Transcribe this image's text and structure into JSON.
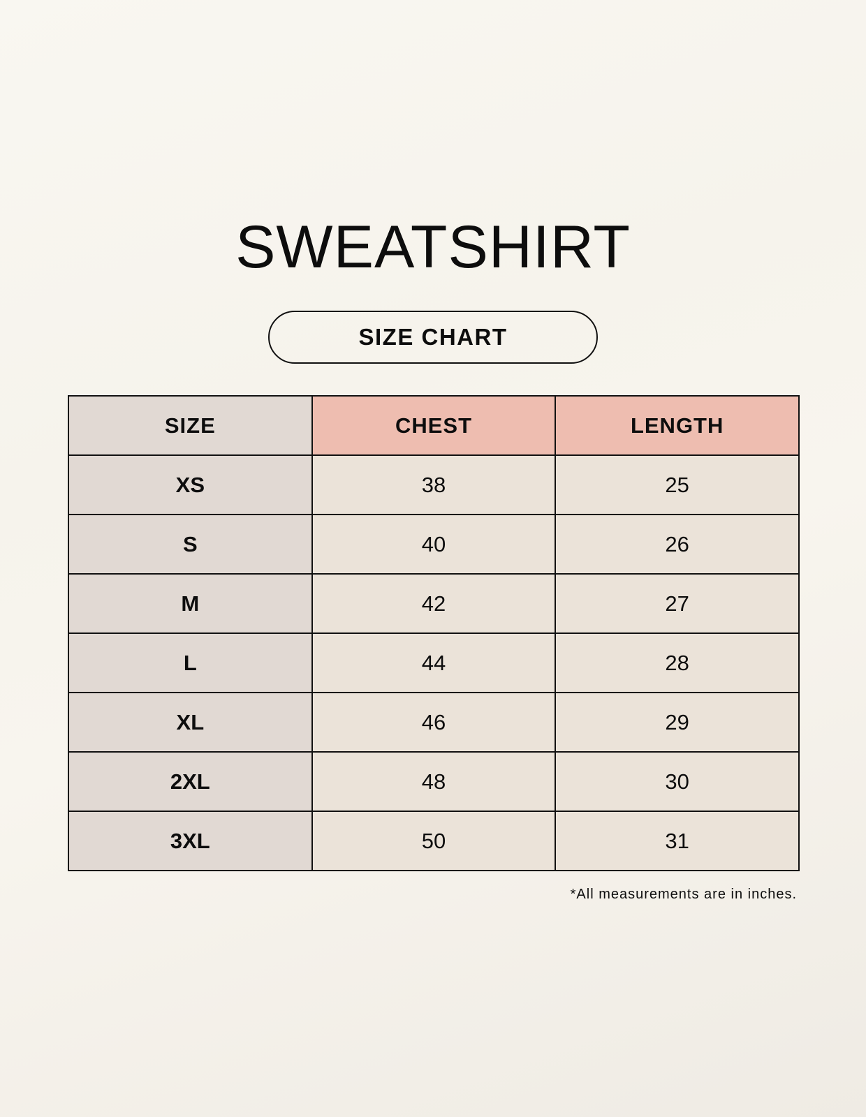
{
  "title": "SWEATSHIRT",
  "subtitle": "SIZE CHART",
  "colors": {
    "size_column": "#e1d9d3",
    "header_highlight": "#eebdb0",
    "cell": "#ebe3d9"
  },
  "table": {
    "headers": [
      "SIZE",
      "CHEST",
      "LENGTH"
    ],
    "rows": [
      [
        "XS",
        "38",
        "25"
      ],
      [
        "S",
        "40",
        "26"
      ],
      [
        "M",
        "42",
        "27"
      ],
      [
        "L",
        "44",
        "28"
      ],
      [
        "XL",
        "46",
        "29"
      ],
      [
        "2XL",
        "48",
        "30"
      ],
      [
        "3XL",
        "50",
        "31"
      ]
    ]
  },
  "footnote": "*All measurements are in inches."
}
